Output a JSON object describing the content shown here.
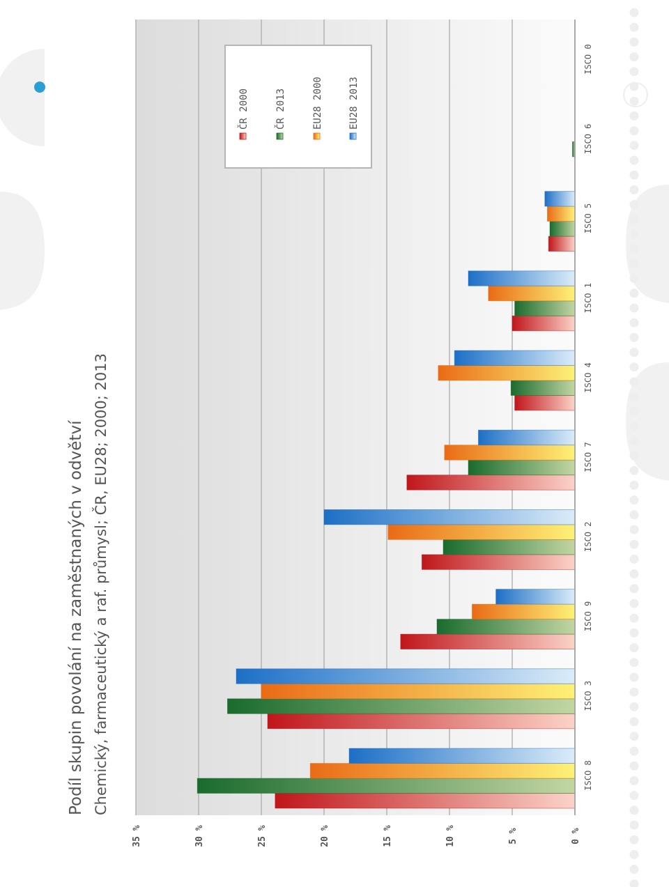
{
  "chart_data": {
    "type": "bar",
    "orientation": "horizontal",
    "rotation": "image rotated 90 degrees counter-clockwise",
    "title": "Podíl skupin povolání na zaměstnaných v odvětví",
    "subtitle": "Chemický, farmaceutický a raf. průmysl; ČR, EU28; 2000; 2013",
    "xlabel": "",
    "ylabel": "",
    "ylim": [
      0,
      35
    ],
    "ticks": [
      "0 %",
      "5 %",
      "10 %",
      "15 %",
      "20 %",
      "25 %",
      "30 %",
      "35 %"
    ],
    "grid": true,
    "legend_position": "top-right",
    "categories": [
      "ISCO 8",
      "ISCO 3",
      "ISCO 9",
      "ISCO 2",
      "ISCO 7",
      "ISCO 4",
      "ISCO 1",
      "ISCO 5",
      "ISCO 6",
      "ISCO 0"
    ],
    "series": [
      {
        "name": "ČR 2000",
        "color": "#c0161b",
        "light": "#fbd3c8",
        "values": [
          23.9,
          24.5,
          13.9,
          12.2,
          13.4,
          4.8,
          5.0,
          2.1,
          0,
          0
        ]
      },
      {
        "name": "ČR 2013",
        "color": "#1a6b2e",
        "light": "#c3d6a3",
        "values": [
          30.1,
          27.7,
          11.0,
          10.5,
          8.5,
          5.1,
          4.8,
          2.0,
          0.2,
          0
        ]
      },
      {
        "name": "EU28 2000",
        "color": "#ea6b15",
        "light": "#fdf278",
        "values": [
          21.1,
          25.0,
          8.2,
          14.9,
          10.4,
          10.9,
          6.9,
          2.2,
          0,
          0
        ]
      },
      {
        "name": "EU28 2013",
        "color": "#1c6fc6",
        "light": "#dbecf9",
        "values": [
          18.0,
          27.0,
          6.3,
          20.0,
          7.7,
          9.6,
          8.5,
          2.4,
          0,
          0
        ]
      }
    ]
  }
}
